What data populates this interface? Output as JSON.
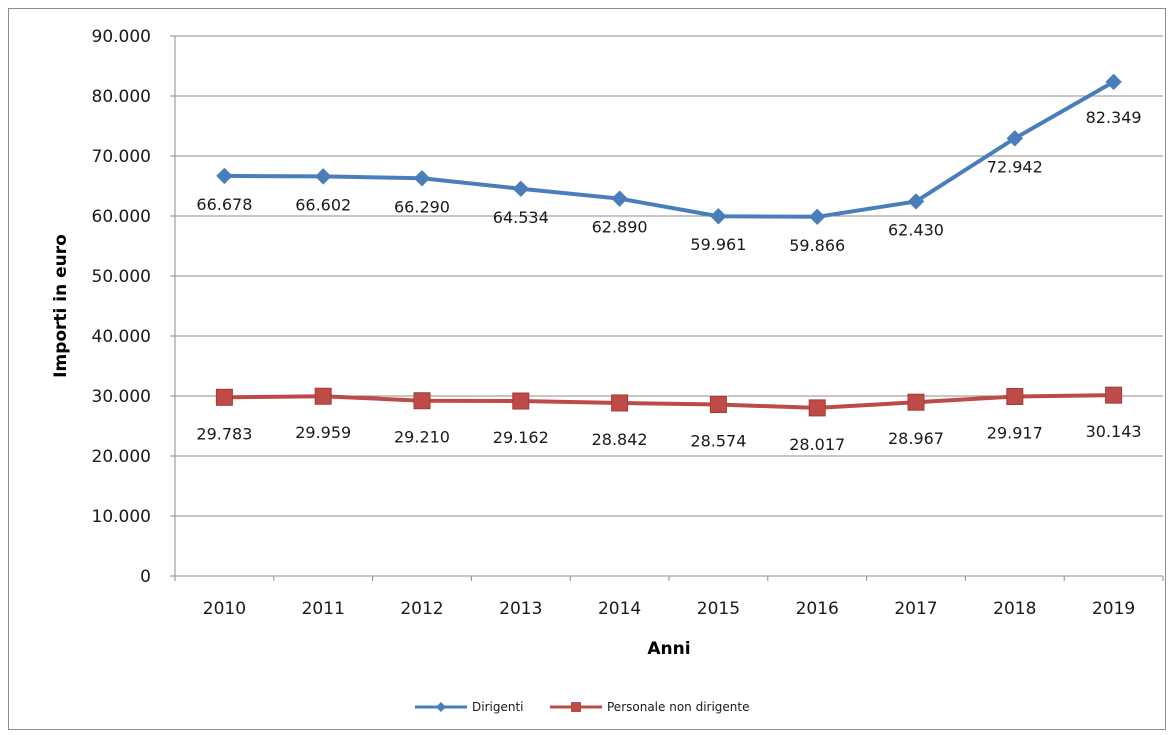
{
  "chart_data": {
    "type": "line",
    "title": "",
    "xlabel": "Anni",
    "ylabel": "Importi in euro",
    "categories": [
      "2010",
      "2011",
      "2012",
      "2013",
      "2014",
      "2015",
      "2016",
      "2017",
      "2018",
      "2019"
    ],
    "ylim": [
      0,
      90000
    ],
    "y_ticks": [
      0,
      10000,
      20000,
      30000,
      40000,
      50000,
      60000,
      70000,
      80000,
      90000
    ],
    "y_tick_labels": [
      "0",
      "10.000",
      "20.000",
      "30.000",
      "40.000",
      "50.000",
      "60.000",
      "70.000",
      "80.000",
      "90.000"
    ],
    "grid": true,
    "legend_position": "bottom",
    "series": [
      {
        "name": "Dirigenti",
        "color": "#4a7ebb",
        "marker": "diamond",
        "values": [
          66678,
          66602,
          66290,
          64534,
          62890,
          59961,
          59866,
          62430,
          72942,
          82349
        ],
        "labels": [
          "66.678",
          "66.602",
          "66.290",
          "64.534",
          "62.890",
          "59.961",
          "59.866",
          "62.430",
          "72.942",
          "82.349"
        ]
      },
      {
        "name": "Personale non dirigente",
        "color": "#be4b48",
        "marker": "square",
        "values": [
          29783,
          29959,
          29210,
          29162,
          28842,
          28574,
          28017,
          28967,
          29917,
          30143
        ],
        "labels": [
          "29.783",
          "29.959",
          "29.210",
          "29.162",
          "28.842",
          "28.574",
          "28.017",
          "28.967",
          "29.917",
          "30.143"
        ]
      }
    ]
  }
}
